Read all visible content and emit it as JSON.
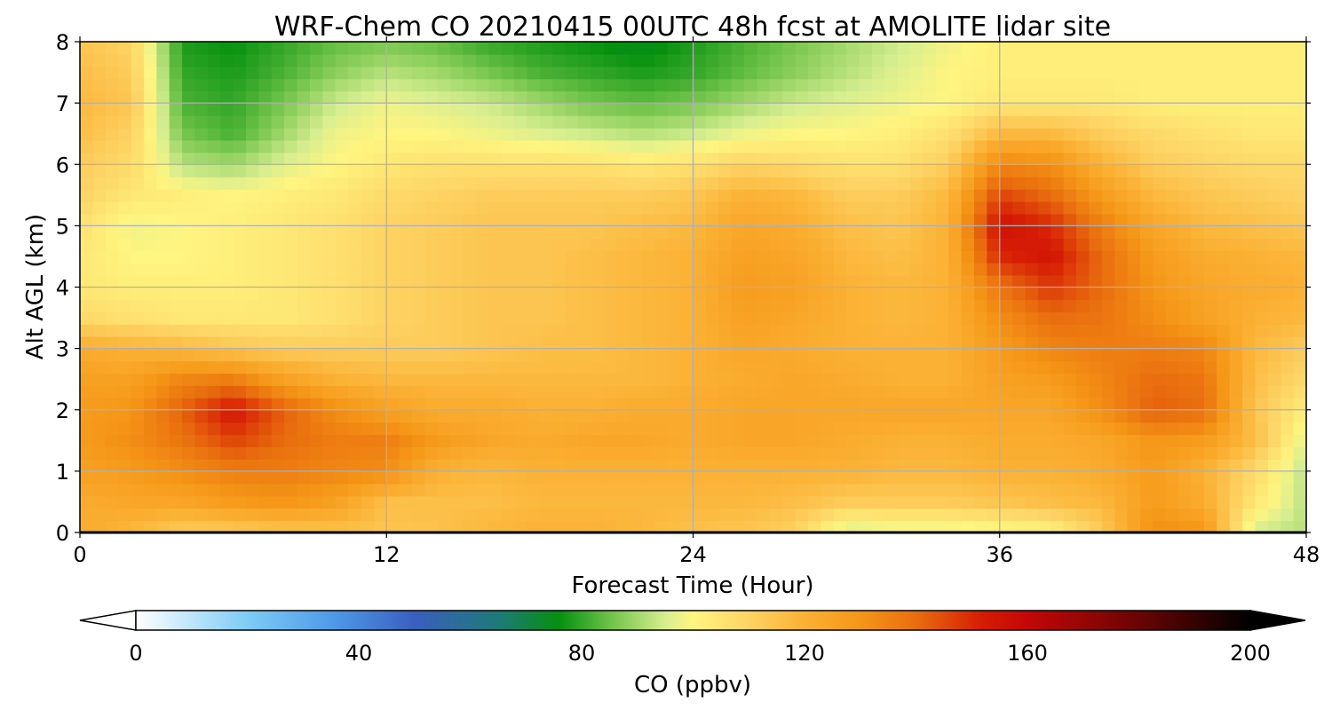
{
  "chart_data": {
    "type": "heatmap",
    "title": "WRF-Chem CO  20210415 00UTC 48h fcst at AMOLITE lidar site",
    "xlabel": "Forecast Time (Hour)",
    "ylabel": "Alt AGL (km)",
    "xlim": [
      0,
      48
    ],
    "ylim": [
      0,
      8
    ],
    "x_ticks": [
      "0",
      "12",
      "24",
      "36",
      "48"
    ],
    "y_ticks": [
      "0",
      "1",
      "2",
      "3",
      "4",
      "5",
      "6",
      "7",
      "8"
    ],
    "grid": true,
    "x_hours": [
      0,
      2,
      4,
      6,
      8,
      10,
      12,
      14,
      16,
      18,
      20,
      22,
      24,
      26,
      28,
      30,
      32,
      34,
      36,
      38,
      40,
      42,
      44,
      46,
      48
    ],
    "alt_km": [
      0,
      0.5,
      1,
      1.5,
      2,
      2.5,
      3,
      3.5,
      4,
      4.5,
      5,
      5.5,
      6,
      6.5,
      7,
      7.5,
      8
    ],
    "co_ppbv": [
      [
        122,
        118,
        112,
        112,
        114,
        115,
        114,
        115,
        118,
        120,
        120,
        118,
        115,
        114,
        110,
        94,
        96,
        96,
        98,
        100,
        112,
        132,
        130,
        94,
        92
      ],
      [
        122,
        124,
        124,
        128,
        130,
        126,
        116,
        116,
        116,
        118,
        118,
        118,
        118,
        118,
        116,
        112,
        112,
        112,
        114,
        116,
        118,
        128,
        122,
        104,
        92
      ],
      [
        126,
        128,
        132,
        136,
        136,
        134,
        132,
        120,
        118,
        120,
        120,
        120,
        120,
        120,
        120,
        120,
        118,
        118,
        120,
        120,
        122,
        128,
        120,
        108,
        92
      ],
      [
        128,
        132,
        138,
        146,
        140,
        136,
        136,
        128,
        124,
        122,
        124,
        124,
        122,
        124,
        124,
        122,
        120,
        120,
        122,
        122,
        124,
        130,
        128,
        116,
        96
      ],
      [
        128,
        130,
        142,
        154,
        142,
        132,
        126,
        122,
        122,
        120,
        120,
        122,
        122,
        124,
        124,
        124,
        124,
        124,
        124,
        124,
        132,
        142,
        140,
        114,
        102
      ],
      [
        126,
        126,
        134,
        136,
        126,
        120,
        118,
        118,
        118,
        118,
        118,
        118,
        120,
        122,
        124,
        122,
        120,
        120,
        126,
        128,
        134,
        140,
        138,
        116,
        108
      ],
      [
        122,
        120,
        118,
        114,
        112,
        112,
        112,
        112,
        114,
        116,
        116,
        118,
        120,
        124,
        122,
        120,
        120,
        120,
        128,
        134,
        136,
        136,
        134,
        118,
        112
      ],
      [
        108,
        106,
        104,
        104,
        104,
        106,
        110,
        112,
        114,
        114,
        116,
        118,
        120,
        126,
        124,
        120,
        118,
        120,
        132,
        140,
        138,
        132,
        126,
        120,
        118
      ],
      [
        104,
        102,
        102,
        102,
        104,
        106,
        110,
        112,
        114,
        114,
        116,
        118,
        120,
        128,
        126,
        120,
        118,
        120,
        138,
        148,
        140,
        130,
        124,
        122,
        120
      ],
      [
        104,
        100,
        100,
        102,
        104,
        106,
        110,
        112,
        114,
        114,
        116,
        118,
        120,
        126,
        124,
        118,
        116,
        120,
        150,
        154,
        140,
        128,
        122,
        120,
        118
      ],
      [
        106,
        98,
        100,
        102,
        104,
        106,
        110,
        112,
        114,
        114,
        114,
        116,
        118,
        124,
        122,
        116,
        114,
        120,
        156,
        150,
        136,
        124,
        118,
        116,
        114
      ],
      [
        110,
        104,
        102,
        100,
        102,
        104,
        108,
        110,
        112,
        112,
        112,
        112,
        114,
        120,
        118,
        112,
        112,
        118,
        146,
        140,
        128,
        118,
        114,
        112,
        110
      ],
      [
        112,
        108,
        92,
        90,
        96,
        100,
        104,
        106,
        106,
        106,
        106,
        104,
        106,
        110,
        108,
        106,
        106,
        112,
        134,
        132,
        120,
        112,
        110,
        108,
        108
      ],
      [
        116,
        110,
        86,
        82,
        90,
        98,
        100,
        100,
        98,
        96,
        94,
        92,
        94,
        98,
        100,
        100,
        102,
        106,
        118,
        118,
        112,
        108,
        106,
        104,
        104
      ],
      [
        118,
        114,
        82,
        80,
        86,
        94,
        98,
        96,
        94,
        90,
        86,
        84,
        86,
        90,
        94,
        96,
        98,
        100,
        104,
        104,
        104,
        102,
        102,
        102,
        102
      ],
      [
        116,
        112,
        80,
        78,
        82,
        88,
        92,
        90,
        86,
        82,
        80,
        78,
        80,
        84,
        88,
        92,
        96,
        100,
        102,
        102,
        102,
        102,
        102,
        102,
        102
      ],
      [
        114,
        110,
        78,
        76,
        80,
        84,
        86,
        84,
        80,
        78,
        76,
        74,
        78,
        82,
        86,
        90,
        94,
        98,
        102,
        102,
        102,
        102,
        102,
        102,
        102
      ]
    ],
    "colorbar": {
      "label": "CO  (ppbv)",
      "min": 0,
      "max": 200,
      "ticks": [
        "0",
        "40",
        "80",
        "120",
        "160",
        "200"
      ],
      "extend": "both",
      "stops": [
        {
          "v": 0,
          "c": "#ffffff"
        },
        {
          "v": 20,
          "c": "#7ecbf6"
        },
        {
          "v": 35,
          "c": "#4f9bea"
        },
        {
          "v": 50,
          "c": "#3a5fbf"
        },
        {
          "v": 65,
          "c": "#1e7a78"
        },
        {
          "v": 76,
          "c": "#05900e"
        },
        {
          "v": 85,
          "c": "#6dc248"
        },
        {
          "v": 95,
          "c": "#d7ee90"
        },
        {
          "v": 100,
          "c": "#fff580"
        },
        {
          "v": 110,
          "c": "#fdd364"
        },
        {
          "v": 120,
          "c": "#fbb134"
        },
        {
          "v": 130,
          "c": "#f59617"
        },
        {
          "v": 140,
          "c": "#e96d0e"
        },
        {
          "v": 152,
          "c": "#d61b05"
        },
        {
          "v": 160,
          "c": "#c40707"
        },
        {
          "v": 180,
          "c": "#6b0404"
        },
        {
          "v": 200,
          "c": "#000000"
        }
      ]
    }
  }
}
